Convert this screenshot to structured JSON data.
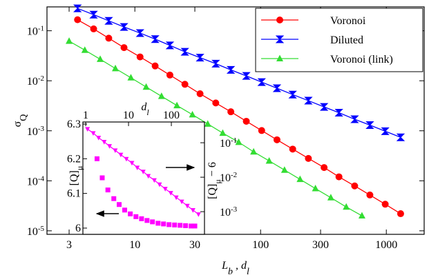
{
  "chart_data": [
    {
      "type": "line",
      "xscale": "log",
      "yscale": "log",
      "legend": "upper right",
      "xlabel": [
        "L",
        "b",
        " , d",
        "l"
      ],
      "ylabel": [
        "σ",
        "Q"
      ],
      "xlim": [
        2,
        2000
      ],
      "ylim": [
        8.5e-06,
        0.3
      ],
      "xticks": [
        3,
        10,
        30,
        100,
        300,
        1000
      ],
      "yticks": [
        {
          "value": 1e-05,
          "label": [
            "10",
            "-5"
          ]
        },
        {
          "value": 0.0001,
          "label": [
            "10",
            "-4"
          ]
        },
        {
          "value": 0.001,
          "label": [
            "10",
            "-3"
          ]
        },
        {
          "value": 0.01,
          "label": [
            "10",
            "-2"
          ]
        },
        {
          "value": 0.1,
          "label": [
            "10",
            "-1"
          ]
        }
      ],
      "series": [
        {
          "name": "Voronoi",
          "color": "#ff0000",
          "marker": "circle",
          "x": [
            3.5,
            4.7,
            6.2,
            8.2,
            11,
            14.5,
            19,
            25,
            33,
            44,
            58,
            77,
            102,
            135,
            180,
            240,
            320,
            420,
            560,
            740,
            980,
            1300
          ],
          "values": [
            0.166,
            0.109,
            0.071,
            0.046,
            0.03,
            0.0198,
            0.013,
            0.0085,
            0.0055,
            0.0036,
            0.0024,
            0.00155,
            0.00101,
            0.00066,
            0.00043,
            0.00028,
            0.000184,
            0.00012,
            7.9e-05,
            5.2e-05,
            3.4e-05,
            2.2e-05
          ]
        },
        {
          "name": "Diluted",
          "color": "#0000ff",
          "marker": "hourglass",
          "x": [
            3.5,
            4.7,
            6.2,
            8.2,
            11,
            14.5,
            19,
            25,
            33,
            44,
            58,
            77,
            102,
            135,
            180,
            240,
            320,
            420,
            560,
            740,
            980,
            1300
          ],
          "values": [
            0.28,
            0.21,
            0.158,
            0.119,
            0.09,
            0.068,
            0.051,
            0.038,
            0.029,
            0.022,
            0.0165,
            0.0125,
            0.0094,
            0.0071,
            0.0053,
            0.004,
            0.003,
            0.0023,
            0.0017,
            0.0013,
            0.00098,
            0.00074
          ]
        },
        {
          "name": "Voronoi (link)",
          "color": "#33dd33",
          "marker": "triangle",
          "x": [
            3,
            4,
            5.3,
            7,
            9.3,
            12.3,
            16.3,
            21.6,
            28.7,
            38,
            50,
            67,
            88,
            117,
            155,
            206,
            273,
            362,
            480,
            640
          ],
          "values": [
            0.062,
            0.041,
            0.027,
            0.0176,
            0.0115,
            0.0075,
            0.0049,
            0.0032,
            0.0021,
            0.00137,
            0.0009,
            0.00059,
            0.00038,
            0.00025,
            0.000164,
            0.000107,
            7e-05,
            4.6e-05,
            3e-05,
            2e-05
          ]
        }
      ]
    },
    {
      "type": "scatter",
      "xscale": "log",
      "x2scale": "log",
      "y2scale": "log",
      "x2label": [
        "d",
        "l"
      ],
      "ylabel": [
        "[Q]",
        "μ"
      ],
      "y2label": [
        "[Q]",
        "μ",
        " − 6"
      ],
      "xlim": [
        3.86,
        35.8
      ],
      "x2lim": [
        0.86,
        594
      ],
      "ylim": [
        5.982,
        6.306
      ],
      "y2lim": [
        0.00022,
        0.4
      ],
      "x2ticks": [
        1,
        10,
        100
      ],
      "yticks": [
        6,
        6.1,
        6.2,
        6.3
      ],
      "y2ticks": [
        {
          "value": 0.001,
          "label": [
            "10",
            "-3"
          ]
        },
        {
          "value": 0.01,
          "label": [
            "10",
            "-2"
          ]
        },
        {
          "value": 0.1,
          "label": [
            "10",
            "-1"
          ]
        }
      ],
      "series": [
        {
          "color": "#ff00ff",
          "marker": "square",
          "axis": "y",
          "x": [
            5,
            5.5,
            6.1,
            6.8,
            7.5,
            8.3,
            9.2,
            10.2,
            11.3,
            12.5,
            13.8,
            15.3,
            16.9,
            18.7,
            20.7,
            22.9,
            25.3,
            28,
            30
          ],
          "values": [
            6.2,
            6.145,
            6.11,
            6.085,
            6.068,
            6.052,
            6.041,
            6.033,
            6.027,
            6.022,
            6.018,
            6.014,
            6.012,
            6.01,
            6.009,
            6.008,
            6.007,
            6.006,
            6.006
          ]
        },
        {
          "color": "#ff00ff",
          "marker": "triangle-down",
          "axis": "y2",
          "xaxis": "x2",
          "line": true,
          "x": [
            1.1,
            1.5,
            2,
            2.7,
            3.6,
            4.9,
            6.6,
            8.9,
            12,
            16,
            22,
            29,
            40,
            53,
            72,
            97,
            130,
            175,
            236,
            320,
            430
          ],
          "values": [
            0.25,
            0.19,
            0.14,
            0.106,
            0.08,
            0.06,
            0.045,
            0.034,
            0.026,
            0.019,
            0.0145,
            0.0109,
            0.0082,
            0.0062,
            0.0046,
            0.0035,
            0.0026,
            0.00197,
            0.00148,
            0.00111,
            0.00084
          ]
        }
      ]
    }
  ]
}
